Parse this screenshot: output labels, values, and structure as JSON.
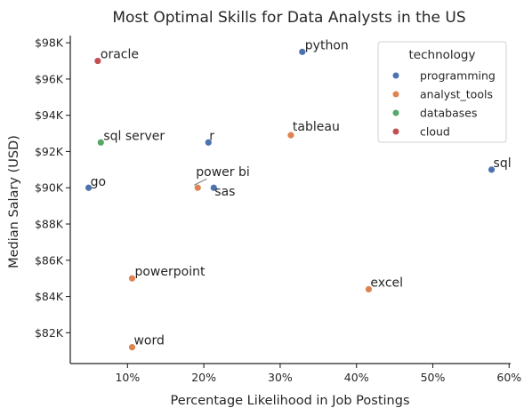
{
  "chart_data": {
    "type": "scatter",
    "title": "Most Optimal Skills for Data Analysts in the US",
    "xlabel": "Percentage Likelihood in Job Postings",
    "ylabel": "Median Salary (USD)",
    "xlim": [
      2.5,
      60.2
    ],
    "ylim": [
      80300,
      98400
    ],
    "x_ticks": [
      10,
      20,
      30,
      40,
      50,
      60
    ],
    "x_tick_labels": [
      "10%",
      "20%",
      "30%",
      "40%",
      "50%",
      "60%"
    ],
    "y_ticks": [
      82000,
      84000,
      86000,
      88000,
      90000,
      92000,
      94000,
      96000,
      98000
    ],
    "y_tick_labels": [
      "$82K",
      "$84K",
      "$86K",
      "$88K",
      "$90K",
      "$92K",
      "$94K",
      "$96K",
      "$98K"
    ],
    "grid": false,
    "legend": {
      "title": "technology",
      "placement": "top-right",
      "entries": [
        {
          "name": "programming",
          "color": "#4c72b0"
        },
        {
          "name": "analyst_tools",
          "color": "#dd8452"
        },
        {
          "name": "databases",
          "color": "#55a868"
        },
        {
          "name": "cloud",
          "color": "#c44e52"
        }
      ]
    },
    "points": [
      {
        "label": "python",
        "x": 32.9,
        "y": 97500,
        "technology": "programming"
      },
      {
        "label": "oracle",
        "x": 6.1,
        "y": 97000,
        "technology": "cloud"
      },
      {
        "label": "tableau",
        "x": 31.4,
        "y": 92900,
        "technology": "analyst_tools"
      },
      {
        "label": "r",
        "x": 20.6,
        "y": 92500,
        "technology": "programming"
      },
      {
        "label": "sql server",
        "x": 6.5,
        "y": 92500,
        "technology": "databases"
      },
      {
        "label": "sql",
        "x": 57.7,
        "y": 91000,
        "technology": "programming"
      },
      {
        "label": "go",
        "x": 4.9,
        "y": 90000,
        "technology": "programming"
      },
      {
        "label": "power bi",
        "x": 19.2,
        "y": 90000,
        "technology": "analyst_tools"
      },
      {
        "label": "sas",
        "x": 21.3,
        "y": 90000,
        "technology": "programming"
      },
      {
        "label": "powerpoint",
        "x": 10.6,
        "y": 85000,
        "technology": "analyst_tools"
      },
      {
        "label": "excel",
        "x": 41.6,
        "y": 84400,
        "technology": "analyst_tools"
      },
      {
        "label": "word",
        "x": 10.6,
        "y": 81200,
        "technology": "analyst_tools"
      }
    ]
  }
}
